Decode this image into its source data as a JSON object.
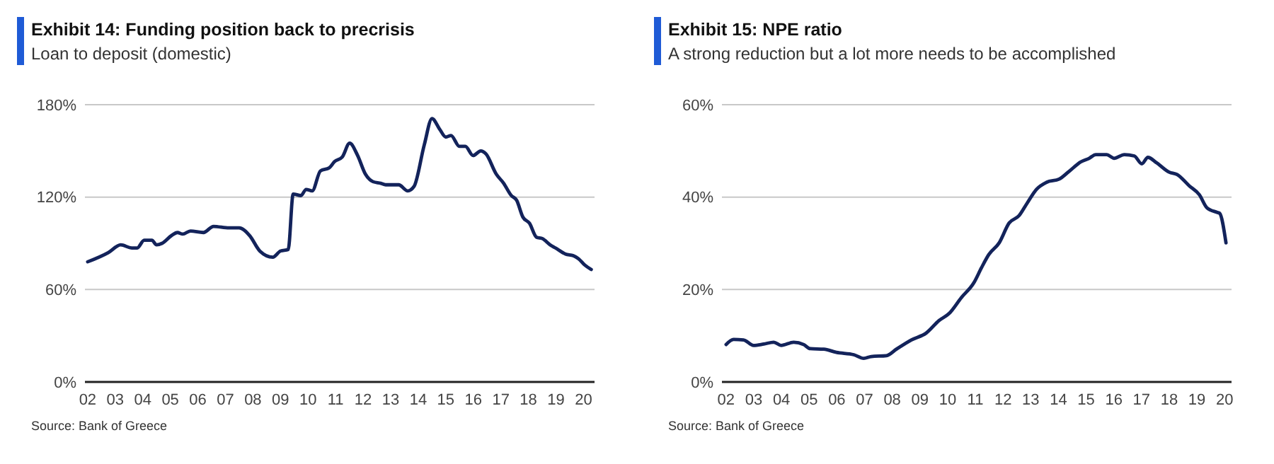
{
  "chart_data": [
    {
      "type": "line",
      "title": "Exhibit 14: Funding position back to precrisis",
      "subtitle": "Loan to deposit (domestic)",
      "annotations": [
        "Source: Bank of Greece"
      ],
      "grid": "y",
      "xlim": [
        2001.9,
        2020.4
      ],
      "xticks": [
        {
          "value": 2002,
          "label": "02"
        },
        {
          "value": 2003,
          "label": "03"
        },
        {
          "value": 2004,
          "label": "04"
        },
        {
          "value": 2005,
          "label": "05"
        },
        {
          "value": 2006,
          "label": "06"
        },
        {
          "value": 2007,
          "label": "07"
        },
        {
          "value": 2008,
          "label": "08"
        },
        {
          "value": 2009,
          "label": "09"
        },
        {
          "value": 2010,
          "label": "10"
        },
        {
          "value": 2011,
          "label": "11"
        },
        {
          "value": 2012,
          "label": "12"
        },
        {
          "value": 2013,
          "label": "13"
        },
        {
          "value": 2014,
          "label": "14"
        },
        {
          "value": 2015,
          "label": "15"
        },
        {
          "value": 2016,
          "label": "16"
        },
        {
          "value": 2017,
          "label": "17"
        },
        {
          "value": 2018,
          "label": "18"
        },
        {
          "value": 2019,
          "label": "19"
        },
        {
          "value": 2020,
          "label": "20"
        }
      ],
      "ylim": [
        0,
        180
      ],
      "yticks": [
        {
          "value": 0,
          "label": "0%"
        },
        {
          "value": 60,
          "label": "60%"
        },
        {
          "value": 120,
          "label": "120%"
        },
        {
          "value": 180,
          "label": "180%"
        }
      ],
      "x": [
        2002.0,
        2002.75,
        2003.2,
        2003.6,
        2003.8,
        2004.05,
        2004.33,
        2004.5,
        2004.7,
        2005.04,
        2005.26,
        2005.45,
        2005.73,
        2006.2,
        2006.57,
        2007.13,
        2007.5,
        2007.88,
        2008.25,
        2008.72,
        2009.0,
        2009.28,
        2009.46,
        2009.74,
        2009.93,
        2010.15,
        2010.45,
        2010.77,
        2010.96,
        2011.24,
        2011.51,
        2011.8,
        2012.08,
        2012.36,
        2012.64,
        2012.82,
        2013.29,
        2013.62,
        2013.85,
        2014.22,
        2014.5,
        2014.78,
        2015.0,
        2015.19,
        2015.49,
        2015.71,
        2015.99,
        2016.27,
        2016.46,
        2016.83,
        2017.1,
        2017.38,
        2017.57,
        2017.8,
        2018.04,
        2018.29,
        2018.51,
        2018.79,
        2018.98,
        2019.35,
        2019.63,
        2019.82,
        2020.04,
        2020.28
      ],
      "series": [
        {
          "color": "#13235b",
          "values": [
            78,
            84,
            89,
            87,
            87,
            92,
            92,
            89,
            90,
            95,
            97,
            96,
            98,
            97,
            101,
            100,
            100,
            95,
            85,
            81,
            85,
            86,
            122,
            121,
            125,
            124,
            137,
            139,
            143,
            146,
            155,
            147,
            135,
            130,
            129,
            128,
            128,
            124,
            127,
            154,
            171,
            164,
            159,
            160,
            153,
            153,
            147,
            150,
            148,
            135,
            129,
            121,
            118,
            107,
            103,
            94,
            93,
            89,
            87,
            83,
            82,
            80,
            76,
            73
          ]
        }
      ]
    },
    {
      "type": "line",
      "title": "Exhibit 15: NPE ratio",
      "subtitle": "A strong reduction but a lot more needs to be accomplished",
      "annotations": [
        "Source: Bank of Greece"
      ],
      "grid": "y",
      "xlim": [
        2001.85,
        2020.25
      ],
      "xticks": [
        {
          "value": 2002,
          "label": "02"
        },
        {
          "value": 2003,
          "label": "03"
        },
        {
          "value": 2004,
          "label": "04"
        },
        {
          "value": 2005,
          "label": "05"
        },
        {
          "value": 2006,
          "label": "06"
        },
        {
          "value": 2007,
          "label": "07"
        },
        {
          "value": 2008,
          "label": "08"
        },
        {
          "value": 2009,
          "label": "09"
        },
        {
          "value": 2010,
          "label": "10"
        },
        {
          "value": 2011,
          "label": "11"
        },
        {
          "value": 2012,
          "label": "12"
        },
        {
          "value": 2013,
          "label": "13"
        },
        {
          "value": 2014,
          "label": "14"
        },
        {
          "value": 2015,
          "label": "15"
        },
        {
          "value": 2016,
          "label": "16"
        },
        {
          "value": 2017,
          "label": "17"
        },
        {
          "value": 2018,
          "label": "18"
        },
        {
          "value": 2019,
          "label": "19"
        },
        {
          "value": 2020,
          "label": "20"
        }
      ],
      "ylim": [
        0,
        60
      ],
      "yticks": [
        {
          "value": 0,
          "label": "0%"
        },
        {
          "value": 20,
          "label": "20%"
        },
        {
          "value": 40,
          "label": "40%"
        },
        {
          "value": 60,
          "label": "60%"
        }
      ],
      "x": [
        2002.0,
        2002.27,
        2002.63,
        2002.99,
        2003.36,
        2003.72,
        2003.99,
        2004.44,
        2004.8,
        2005.04,
        2005.53,
        2005.98,
        2006.61,
        2006.97,
        2007.24,
        2007.79,
        2008.15,
        2008.69,
        2009.23,
        2009.69,
        2010.05,
        2010.5,
        2010.95,
        2011.22,
        2011.49,
        2011.86,
        2012.22,
        2012.58,
        2012.85,
        2013.21,
        2013.57,
        2014.03,
        2014.39,
        2014.8,
        2015.11,
        2015.35,
        2015.74,
        2016.01,
        2016.38,
        2016.74,
        2017.01,
        2017.23,
        2017.55,
        2018.0,
        2018.28,
        2018.73,
        2019.09,
        2019.36,
        2019.73,
        2019.82,
        2020.05
      ],
      "series": [
        {
          "color": "#13235b",
          "values": [
            8.1,
            9.2,
            9.1,
            7.9,
            8.2,
            8.6,
            7.9,
            8.6,
            8.1,
            7.2,
            7.1,
            6.4,
            5.9,
            5.1,
            5.5,
            5.7,
            7.1,
            9.1,
            10.6,
            13.3,
            14.8,
            18.3,
            21.5,
            24.7,
            27.6,
            30.1,
            34.4,
            36,
            38.5,
            41.7,
            43.2,
            43.9,
            45.6,
            47.6,
            48.4,
            49.2,
            49.2,
            48.4,
            49.2,
            48.9,
            47.2,
            48.6,
            47.4,
            45.4,
            44.9,
            42.4,
            40.5,
            37.7,
            36.7,
            36.5,
            30.1
          ]
        }
      ]
    }
  ]
}
